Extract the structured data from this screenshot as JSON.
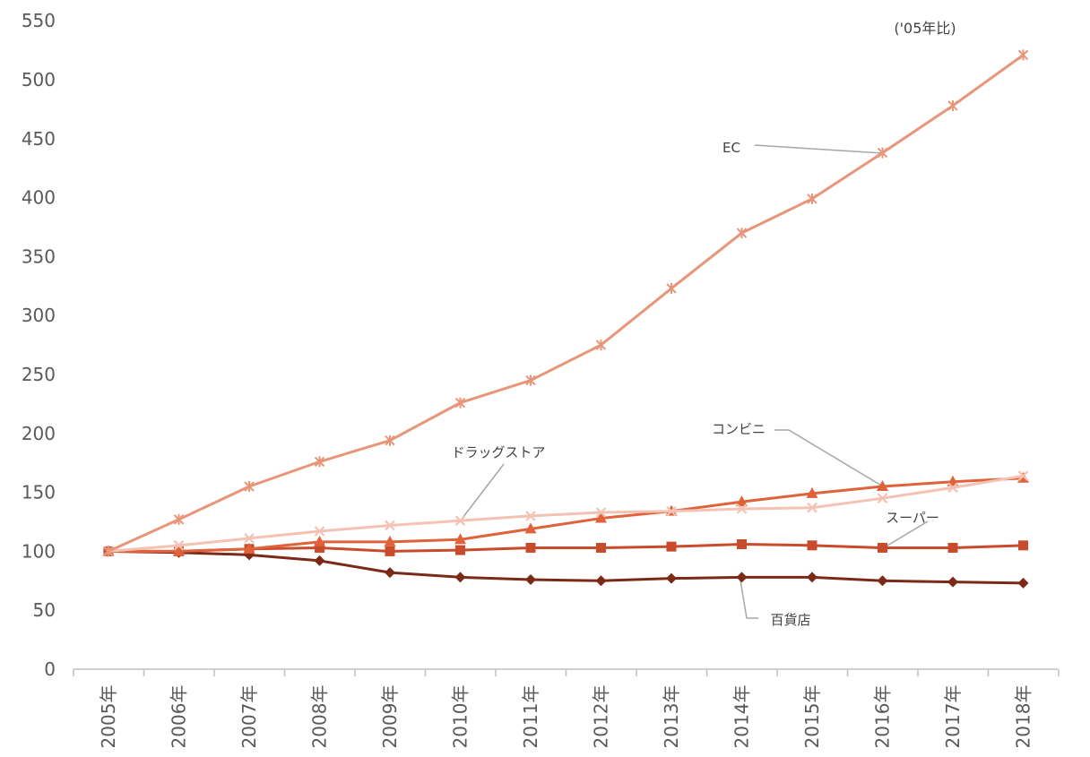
{
  "chart_data": {
    "type": "line",
    "unit_note": "('05年比)",
    "x": [
      "2005年",
      "2006年",
      "2007年",
      "2008年",
      "2009年",
      "2010年",
      "2011年",
      "2012年",
      "2013年",
      "2014年",
      "2015年",
      "2016年",
      "2017年",
      "2018年"
    ],
    "ylim": [
      0,
      550
    ],
    "yticks": [
      0,
      50,
      100,
      150,
      200,
      250,
      300,
      350,
      400,
      450,
      500,
      550
    ],
    "grid": false,
    "series": [
      {
        "name": "EC",
        "color": "#e8957a",
        "marker": "asterisk",
        "values": [
          100,
          127,
          155,
          176,
          194,
          226,
          245,
          275,
          323,
          370,
          399,
          438,
          478,
          521
        ]
      },
      {
        "name": "ドラッグストア",
        "color": "#f4c2b3",
        "marker": "x",
        "values": [
          100,
          105,
          111,
          117,
          122,
          126,
          130,
          133,
          134,
          136,
          137,
          145,
          154,
          164
        ]
      },
      {
        "name": "コンビニ",
        "color": "#e0623a",
        "marker": "triangle",
        "values": [
          100,
          100,
          102,
          108,
          108,
          110,
          119,
          128,
          134,
          142,
          149,
          155,
          159,
          162
        ]
      },
      {
        "name": "スーパー",
        "color": "#c84b2c",
        "marker": "square",
        "values": [
          100,
          100,
          102,
          103,
          100,
          101,
          103,
          103,
          104,
          106,
          105,
          103,
          103,
          105
        ]
      },
      {
        "name": "百貨店",
        "color": "#7b2a17",
        "marker": "diamond",
        "values": [
          100,
          99,
          97,
          92,
          82,
          78,
          76,
          75,
          77,
          78,
          78,
          75,
          74,
          73
        ]
      }
    ]
  }
}
